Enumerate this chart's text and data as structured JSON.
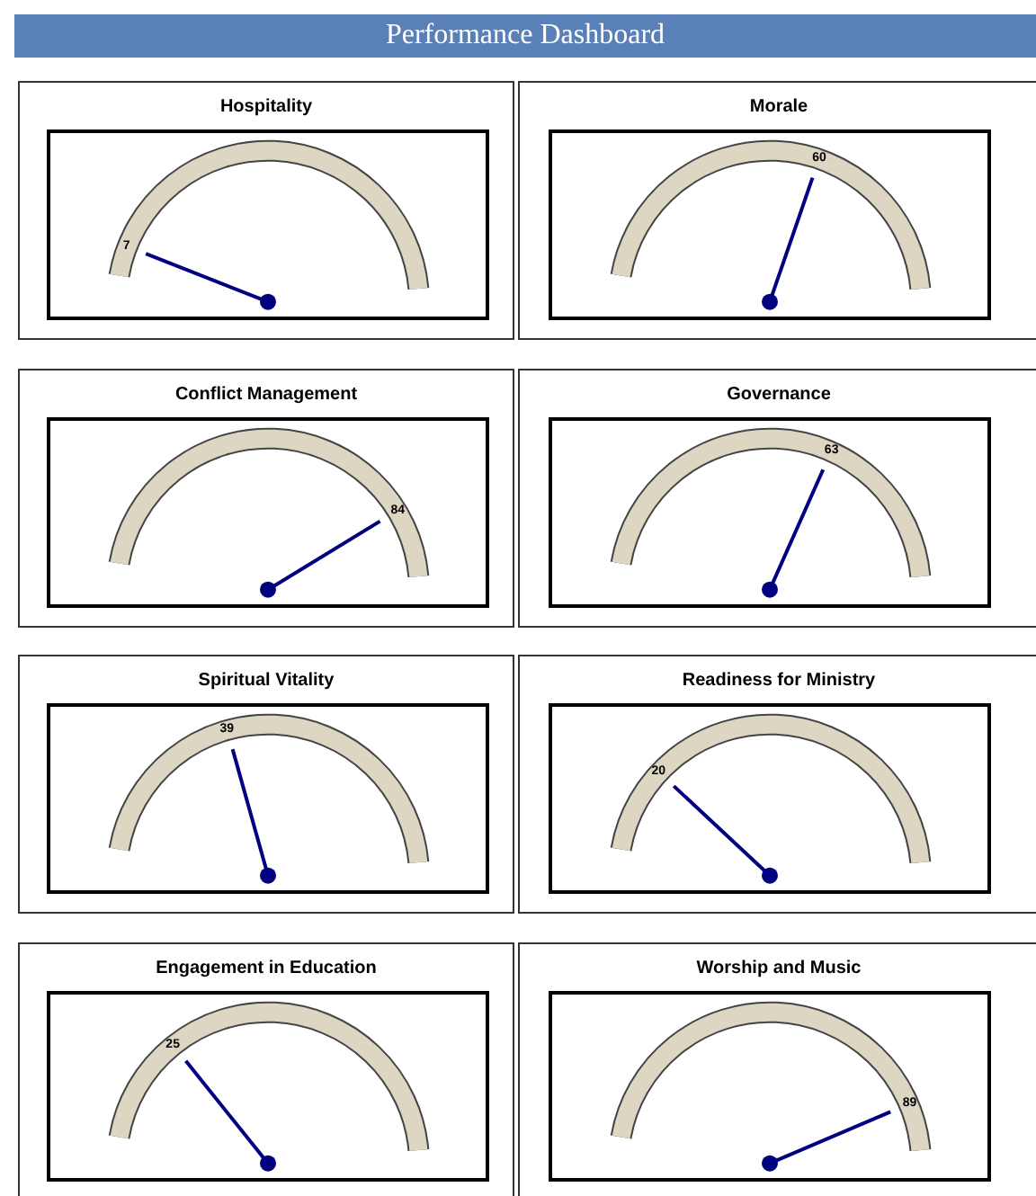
{
  "chart_data": [
    {
      "type": "other",
      "title": "Hospitality",
      "values": [
        7
      ],
      "data_labels": true,
      "annotations": [
        "Performance Dashboard"
      ]
    },
    {
      "type": "other",
      "title": "Morale",
      "values": [
        60
      ],
      "data_labels": true
    },
    {
      "type": "other",
      "title": "Conflict Management",
      "values": [
        84
      ],
      "data_labels": true
    },
    {
      "type": "other",
      "title": "Governance",
      "values": [
        63
      ],
      "data_labels": true
    },
    {
      "type": "other",
      "title": "Spiritual Vitality",
      "values": [
        39
      ],
      "data_labels": true
    },
    {
      "type": "other",
      "title": "Readiness for Ministry",
      "values": [
        20
      ],
      "data_labels": true
    },
    {
      "type": "other",
      "title": "Engagement in Education",
      "values": [
        25
      ],
      "data_labels": true
    },
    {
      "type": "other",
      "title": "Worship and Music",
      "values": [
        89
      ],
      "data_labels": true
    }
  ]
}
